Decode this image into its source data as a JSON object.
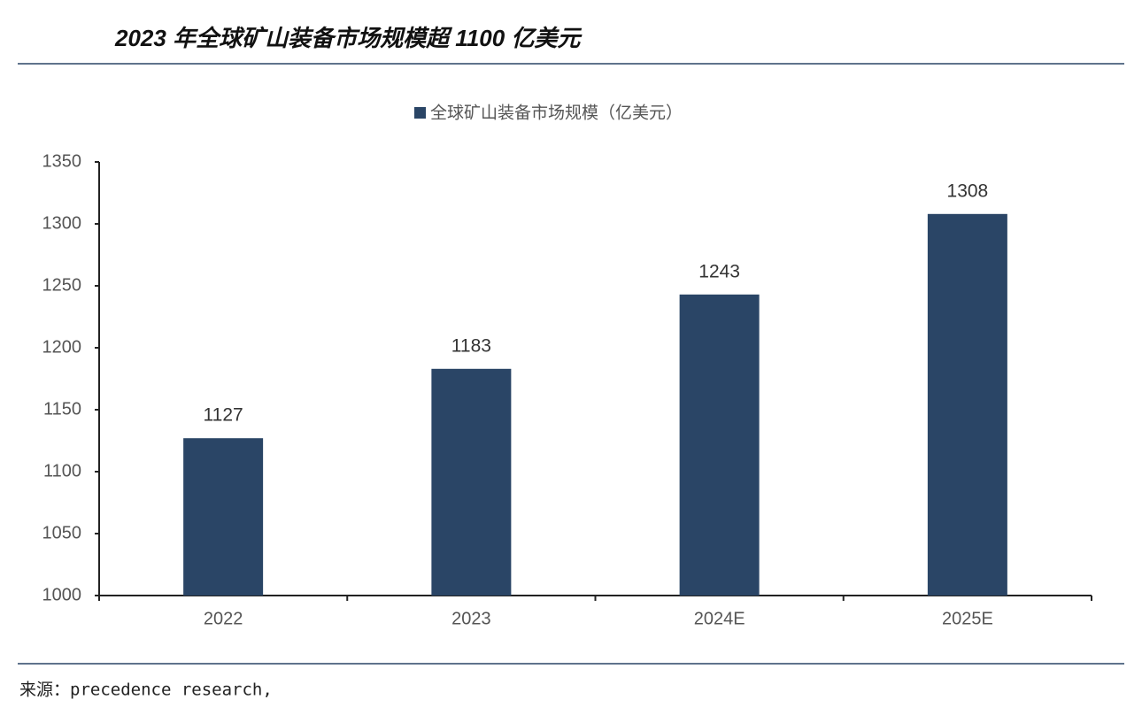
{
  "chart_data": {
    "type": "bar",
    "title": "2023 年全球矿山装备市场规模超 1100 亿美元",
    "source": "来源：precedence research,",
    "categories": [
      "2022",
      "2023",
      "2024E",
      "2025E"
    ],
    "series": [
      {
        "name": "全球矿山装备市场规模（亿美元）",
        "color": "#2a4566",
        "values": [
          1127,
          1183,
          1243,
          1308
        ]
      }
    ],
    "ylim": [
      1000,
      1350
    ],
    "yticks": [
      1000,
      1050,
      1100,
      1150,
      1200,
      1250,
      1300,
      1350
    ],
    "grid": false,
    "data_labels": true,
    "legend": "top"
  }
}
